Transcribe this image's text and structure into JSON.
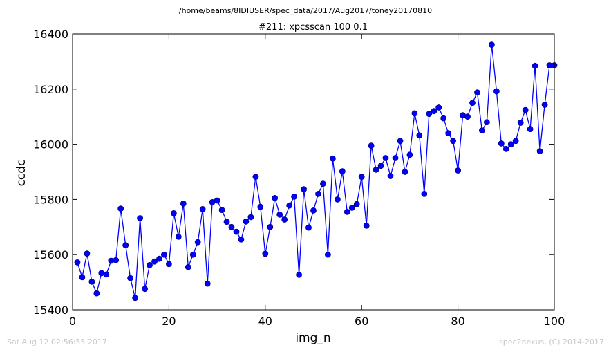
{
  "header": {
    "path": "/home/beams/8IDIUSER/spec_data/2017/Aug2017/toney20170810"
  },
  "footer": {
    "timestamp": "Sat Aug 12 02:56:55 2017",
    "credit": "spec2nexus, (C) 2014-2017"
  },
  "chart_data": {
    "type": "line",
    "title": "#211: xpcsscan 100 0.1",
    "xlabel": "img_n",
    "ylabel": "ccdc",
    "xlim": [
      0,
      100
    ],
    "ylim": [
      15400,
      16400
    ],
    "xticks": [
      0,
      20,
      40,
      60,
      80,
      100
    ],
    "yticks": [
      15400,
      15600,
      15800,
      16000,
      16200,
      16400
    ],
    "grid": false,
    "colors": {
      "line": "#0000ff",
      "marker_fill": "#0000ff",
      "marker_edge": "#000080"
    },
    "series": [
      {
        "x": [
          1,
          2,
          3,
          4,
          5,
          6,
          7,
          8,
          9,
          10,
          11,
          12,
          13,
          14,
          15,
          16,
          17,
          18,
          19,
          20,
          21,
          22,
          23,
          24,
          25,
          26,
          27,
          28,
          29,
          30,
          31,
          32,
          33,
          34,
          35,
          36,
          37,
          38,
          39,
          40,
          41,
          42,
          43,
          44,
          45,
          46,
          47,
          48,
          49,
          50,
          51,
          52,
          53,
          54,
          55,
          56,
          57,
          58,
          59,
          60,
          61,
          62,
          63,
          64,
          65,
          66,
          67,
          68,
          69,
          70,
          71,
          72,
          73,
          74,
          75,
          76,
          77,
          78,
          79,
          80,
          81,
          82,
          83,
          84,
          85,
          86,
          87,
          88,
          89,
          90,
          91,
          92,
          93,
          94,
          95,
          96,
          97,
          98,
          99,
          100
        ],
        "y": [
          15572,
          15518,
          15604,
          15502,
          15460,
          15533,
          15528,
          15578,
          15580,
          15767,
          15634,
          15515,
          15443,
          15732,
          15476,
          15562,
          15575,
          15585,
          15600,
          15566,
          15750,
          15665,
          15785,
          15555,
          15600,
          15645,
          15765,
          15495,
          15790,
          15796,
          15762,
          15719,
          15700,
          15683,
          15655,
          15720,
          15736,
          15882,
          15773,
          15603,
          15700,
          15805,
          15745,
          15727,
          15778,
          15810,
          15527,
          15837,
          15698,
          15760,
          15820,
          15857,
          15600,
          15948,
          15800,
          15902,
          15755,
          15770,
          15783,
          15882,
          15705,
          15995,
          15908,
          15922,
          15950,
          15885,
          15950,
          16012,
          15900,
          15962,
          16112,
          16032,
          15820,
          16110,
          16120,
          16133,
          16094,
          16040,
          16012,
          15905,
          16105,
          16100,
          16150,
          16188,
          16050,
          16080,
          16361,
          16192,
          16003,
          15983,
          16000,
          16012,
          16078,
          16124,
          16055,
          16284,
          15975,
          16143,
          16286,
          16286
        ]
      }
    ]
  }
}
